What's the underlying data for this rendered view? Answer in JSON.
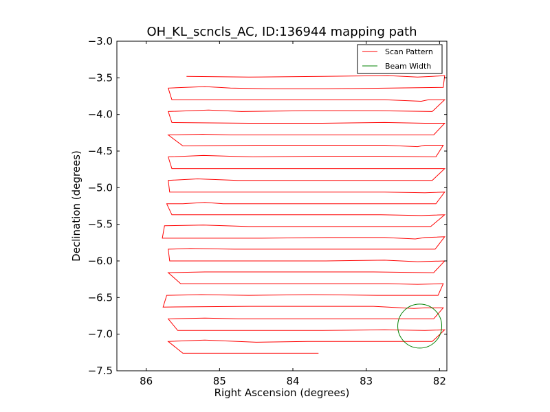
{
  "chart_data": {
    "type": "line",
    "title": "OH_KL_scncls_AC, ID:136944 mapping path",
    "xlabel": "Right Ascension (degrees)",
    "ylabel": "Declination (degrees)",
    "xlim": [
      86.4,
      81.9
    ],
    "ylim": [
      -7.5,
      -3.0
    ],
    "x_ticks": [
      86,
      85,
      84,
      83,
      82
    ],
    "x_tick_labels": [
      "86",
      "85",
      "84",
      "83",
      "82"
    ],
    "y_ticks": [
      -3.0,
      -3.5,
      -4.0,
      -4.5,
      -5.0,
      -5.5,
      -6.0,
      -6.5,
      -7.0,
      -7.5
    ],
    "y_tick_labels": [
      "−3.0",
      "−3.5",
      "−4.0",
      "−4.5",
      "−5.0",
      "−5.5",
      "−6.0",
      "−6.5",
      "−7.0",
      "−7.5"
    ],
    "legend": {
      "position": "top-right",
      "entries": [
        {
          "label": "Scan Pattern",
          "color": "#ff0000"
        },
        {
          "label": "Beam Width",
          "color": "#008000"
        }
      ]
    },
    "grid": false,
    "series": [
      {
        "name": "Scan Pattern",
        "color": "#ff0000",
        "points": [
          [
            85.45,
            -3.48
          ],
          [
            84.6,
            -3.49
          ],
          [
            83.6,
            -3.48
          ],
          [
            82.7,
            -3.47
          ],
          [
            82.3,
            -3.49
          ],
          [
            82.1,
            -3.48
          ],
          [
            81.93,
            -3.47
          ],
          [
            81.95,
            -3.63
          ],
          [
            82.65,
            -3.64
          ],
          [
            83.55,
            -3.65
          ],
          [
            84.3,
            -3.65
          ],
          [
            84.85,
            -3.64
          ],
          [
            85.2,
            -3.62
          ],
          [
            85.7,
            -3.64
          ],
          [
            85.65,
            -3.8
          ],
          [
            84.75,
            -3.8
          ],
          [
            83.7,
            -3.8
          ],
          [
            82.75,
            -3.8
          ],
          [
            82.25,
            -3.82
          ],
          [
            82.15,
            -3.8
          ],
          [
            81.93,
            -3.8
          ],
          [
            82.1,
            -3.96
          ],
          [
            82.85,
            -3.95
          ],
          [
            83.8,
            -3.95
          ],
          [
            84.7,
            -3.96
          ],
          [
            85.15,
            -3.94
          ],
          [
            85.7,
            -3.96
          ],
          [
            85.65,
            -4.11
          ],
          [
            84.6,
            -4.12
          ],
          [
            83.6,
            -4.12
          ],
          [
            82.75,
            -4.11
          ],
          [
            82.2,
            -4.12
          ],
          [
            81.93,
            -4.12
          ],
          [
            82.08,
            -4.28
          ],
          [
            82.9,
            -4.28
          ],
          [
            83.9,
            -4.28
          ],
          [
            84.85,
            -4.28
          ],
          [
            85.23,
            -4.27
          ],
          [
            85.7,
            -4.28
          ],
          [
            85.5,
            -4.43
          ],
          [
            84.5,
            -4.42
          ],
          [
            83.55,
            -4.42
          ],
          [
            82.75,
            -4.42
          ],
          [
            82.3,
            -4.44
          ],
          [
            82.2,
            -4.42
          ],
          [
            81.95,
            -4.42
          ],
          [
            82.05,
            -4.58
          ],
          [
            82.8,
            -4.57
          ],
          [
            83.7,
            -4.57
          ],
          [
            84.55,
            -4.58
          ],
          [
            85.22,
            -4.56
          ],
          [
            85.7,
            -4.58
          ],
          [
            85.65,
            -4.74
          ],
          [
            84.5,
            -4.74
          ],
          [
            83.5,
            -4.74
          ],
          [
            82.7,
            -4.74
          ],
          [
            82.08,
            -4.74
          ],
          [
            81.93,
            -4.74
          ],
          [
            82.1,
            -4.9
          ],
          [
            82.9,
            -4.9
          ],
          [
            83.85,
            -4.9
          ],
          [
            84.75,
            -4.9
          ],
          [
            85.3,
            -4.88
          ],
          [
            85.7,
            -4.9
          ],
          [
            85.68,
            -5.06
          ],
          [
            84.6,
            -5.06
          ],
          [
            83.65,
            -5.06
          ],
          [
            82.75,
            -5.06
          ],
          [
            82.2,
            -5.07
          ],
          [
            81.93,
            -5.06
          ],
          [
            82.05,
            -5.22
          ],
          [
            82.9,
            -5.22
          ],
          [
            83.85,
            -5.22
          ],
          [
            84.95,
            -5.22
          ],
          [
            85.2,
            -5.2
          ],
          [
            85.5,
            -5.22
          ],
          [
            85.72,
            -5.22
          ],
          [
            85.65,
            -5.37
          ],
          [
            84.55,
            -5.37
          ],
          [
            83.6,
            -5.37
          ],
          [
            82.8,
            -5.37
          ],
          [
            82.25,
            -5.38
          ],
          [
            81.93,
            -5.37
          ],
          [
            82.12,
            -5.53
          ],
          [
            82.85,
            -5.53
          ],
          [
            83.75,
            -5.53
          ],
          [
            84.6,
            -5.53
          ],
          [
            85.22,
            -5.51
          ],
          [
            85.75,
            -5.52
          ],
          [
            85.78,
            -5.69
          ],
          [
            84.5,
            -5.69
          ],
          [
            83.5,
            -5.68
          ],
          [
            82.75,
            -5.68
          ],
          [
            82.33,
            -5.7
          ],
          [
            82.2,
            -5.68
          ],
          [
            81.93,
            -5.67
          ],
          [
            82.06,
            -5.84
          ],
          [
            82.85,
            -5.84
          ],
          [
            83.8,
            -5.84
          ],
          [
            84.8,
            -5.84
          ],
          [
            85.4,
            -5.83
          ],
          [
            85.7,
            -5.84
          ],
          [
            85.68,
            -6.0
          ],
          [
            84.5,
            -6.0
          ],
          [
            83.55,
            -6.0
          ],
          [
            82.75,
            -5.99
          ],
          [
            82.3,
            -6.01
          ],
          [
            81.93,
            -6.0
          ],
          [
            82.08,
            -6.16
          ],
          [
            82.9,
            -6.15
          ],
          [
            83.85,
            -6.15
          ],
          [
            84.75,
            -6.15
          ],
          [
            85.2,
            -6.15
          ],
          [
            85.7,
            -6.16
          ],
          [
            85.53,
            -6.31
          ],
          [
            84.55,
            -6.31
          ],
          [
            83.55,
            -6.31
          ],
          [
            82.7,
            -6.31
          ],
          [
            82.3,
            -6.32
          ],
          [
            81.95,
            -6.31
          ],
          [
            82.02,
            -6.47
          ],
          [
            82.85,
            -6.47
          ],
          [
            83.75,
            -6.46
          ],
          [
            84.6,
            -6.47
          ],
          [
            85.25,
            -6.46
          ],
          [
            85.72,
            -6.47
          ],
          [
            85.77,
            -6.63
          ],
          [
            84.6,
            -6.62
          ],
          [
            83.65,
            -6.62
          ],
          [
            82.9,
            -6.62
          ],
          [
            82.7,
            -6.63
          ],
          [
            82.35,
            -6.65
          ],
          [
            82.2,
            -6.64
          ],
          [
            81.95,
            -6.64
          ],
          [
            82.08,
            -6.79
          ],
          [
            82.85,
            -6.79
          ],
          [
            83.8,
            -6.79
          ],
          [
            84.75,
            -6.79
          ],
          [
            85.2,
            -6.78
          ],
          [
            85.7,
            -6.79
          ],
          [
            85.57,
            -6.95
          ],
          [
            84.6,
            -6.95
          ],
          [
            83.6,
            -6.95
          ],
          [
            82.75,
            -6.94
          ],
          [
            82.2,
            -6.95
          ],
          [
            81.93,
            -6.94
          ],
          [
            82.1,
            -7.1
          ],
          [
            82.9,
            -7.1
          ],
          [
            83.8,
            -7.1
          ],
          [
            84.5,
            -7.11
          ],
          [
            85.2,
            -7.08
          ],
          [
            85.7,
            -7.1
          ],
          [
            85.5,
            -7.26
          ],
          [
            84.6,
            -7.26
          ],
          [
            83.65,
            -7.26
          ]
        ]
      },
      {
        "name": "Beam Width",
        "color": "#008000",
        "shape": "circle",
        "center": [
          82.27,
          -6.89
        ],
        "radius_deg": 0.3
      }
    ]
  }
}
